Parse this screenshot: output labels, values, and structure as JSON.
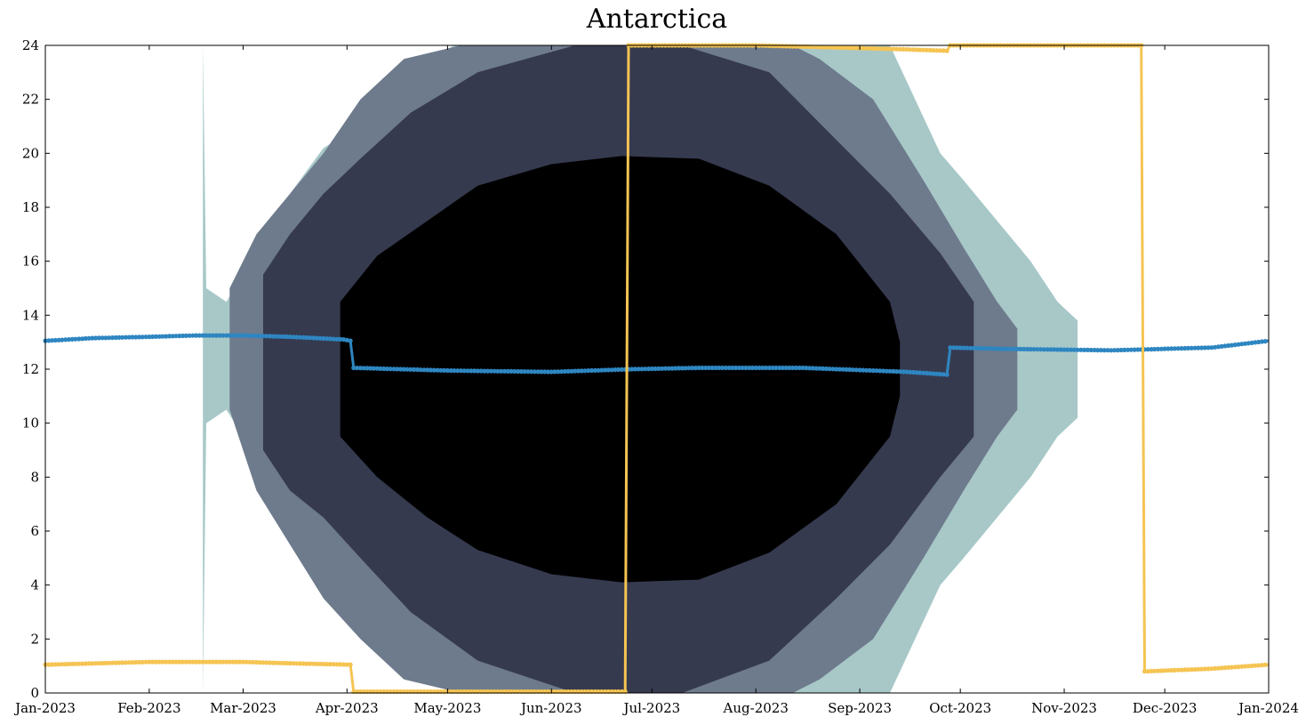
{
  "chart_data": {
    "type": "area",
    "title": "Antarctica",
    "xlabel": "",
    "ylabel": "",
    "x_axis": {
      "range": [
        "2023-01-01",
        "2024-01-01"
      ],
      "tick_labels": [
        "Jan-2023",
        "Feb-2023",
        "Mar-2023",
        "Apr-2023",
        "May-2023",
        "Jun-2023",
        "Jul-2023",
        "Aug-2023",
        "Sep-2023",
        "Oct-2023",
        "Nov-2023",
        "Dec-2023",
        "Jan-2024"
      ]
    },
    "y_axis": {
      "range": [
        0,
        24
      ],
      "tick_labels": [
        "0",
        "2",
        "4",
        "6",
        "8",
        "10",
        "12",
        "14",
        "16",
        "18",
        "20",
        "22",
        "24"
      ]
    },
    "grid": false,
    "legend": "none",
    "bands": [
      {
        "color": "#a8c8c8",
        "points": [
          [
            "2023-02-17",
            24,
            0
          ],
          [
            "2023-02-18",
            15,
            10
          ],
          [
            "2023-02-24",
            14.5,
            10.5
          ],
          [
            "2023-03-05",
            16.3,
            8.7
          ],
          [
            "2023-03-15",
            18.5,
            6.5
          ],
          [
            "2023-03-25",
            20.2,
            4.8
          ],
          [
            "2023-04-02",
            20.8,
            4.2
          ],
          [
            "2023-04-15",
            22.8,
            1.8
          ],
          [
            "2023-05-03",
            24,
            0
          ],
          [
            "2023-09-10",
            24,
            0
          ],
          [
            "2023-09-25",
            20,
            4
          ],
          [
            "2023-10-02",
            19,
            5
          ],
          [
            "2023-10-12",
            17.5,
            6.5
          ],
          [
            "2023-10-22",
            16,
            8
          ],
          [
            "2023-10-30",
            14.5,
            9.5
          ],
          [
            "2023-11-05",
            13.8,
            10.2
          ]
        ]
      },
      {
        "color": "#6e7b8d",
        "points": [
          [
            "2023-02-25",
            15,
            10.5
          ],
          [
            "2023-03-05",
            17,
            7.5
          ],
          [
            "2023-03-15",
            18.5,
            5.5
          ],
          [
            "2023-03-25",
            20,
            3.5
          ],
          [
            "2023-04-05",
            22,
            2
          ],
          [
            "2023-04-18",
            23.5,
            0.5
          ],
          [
            "2023-05-05",
            24,
            0
          ],
          [
            "2023-06-08",
            24,
            0
          ],
          [
            "2023-07-15",
            24,
            0
          ],
          [
            "2023-08-12",
            24,
            0
          ],
          [
            "2023-08-20",
            23.5,
            0.5
          ],
          [
            "2023-09-05",
            22,
            2
          ],
          [
            "2023-09-20",
            19,
            5
          ],
          [
            "2023-10-02",
            16.5,
            7.5
          ],
          [
            "2023-10-12",
            14.5,
            9.5
          ],
          [
            "2023-10-18",
            13.5,
            10.5
          ]
        ]
      },
      {
        "color": "#363a4f",
        "points": [
          [
            "2023-03-07",
            15.5,
            9
          ],
          [
            "2023-03-15",
            17,
            7.5
          ],
          [
            "2023-03-25",
            18.5,
            6.5
          ],
          [
            "2023-04-05",
            19.8,
            5
          ],
          [
            "2023-04-20",
            21.5,
            3
          ],
          [
            "2023-05-10",
            23,
            1.2
          ],
          [
            "2023-06-08",
            24,
            0
          ],
          [
            "2023-07-10",
            24,
            0
          ],
          [
            "2023-08-05",
            23,
            1.2
          ],
          [
            "2023-08-25",
            20.5,
            3.5
          ],
          [
            "2023-09-10",
            18.5,
            5.5
          ],
          [
            "2023-09-25",
            16.3,
            8
          ],
          [
            "2023-10-05",
            14.5,
            9.5
          ]
        ]
      },
      {
        "color": "#000000",
        "points": [
          [
            "2023-03-30",
            14.5,
            9.5
          ],
          [
            "2023-04-10",
            16.2,
            8
          ],
          [
            "2023-04-25",
            17.5,
            6.5
          ],
          [
            "2023-05-10",
            18.8,
            5.3
          ],
          [
            "2023-06-01",
            19.6,
            4.4
          ],
          [
            "2023-06-22",
            19.9,
            4.1
          ],
          [
            "2023-07-15",
            19.8,
            4.2
          ],
          [
            "2023-08-05",
            18.8,
            5.2
          ],
          [
            "2023-08-25",
            17,
            7
          ],
          [
            "2023-09-10",
            14.5,
            9.5
          ],
          [
            "2023-09-13",
            13,
            11
          ]
        ]
      }
    ],
    "series": [
      {
        "color": "#2e86c1",
        "points": [
          [
            "2023-01-01",
            13.05
          ],
          [
            "2023-01-15",
            13.15
          ],
          [
            "2023-02-01",
            13.2
          ],
          [
            "2023-02-15",
            13.25
          ],
          [
            "2023-03-01",
            13.25
          ],
          [
            "2023-03-15",
            13.2
          ],
          [
            "2023-03-31",
            13.1
          ],
          [
            "2023-04-02",
            13.05
          ],
          [
            "2023-04-03",
            12.05
          ],
          [
            "2023-05-01",
            11.95
          ],
          [
            "2023-06-01",
            11.9
          ],
          [
            "2023-06-25",
            12.0
          ],
          [
            "2023-07-15",
            12.05
          ],
          [
            "2023-08-15",
            12.05
          ],
          [
            "2023-09-15",
            11.9
          ],
          [
            "2023-09-27",
            11.8
          ],
          [
            "2023-09-28",
            12.8
          ],
          [
            "2023-10-15",
            12.75
          ],
          [
            "2023-11-15",
            12.7
          ],
          [
            "2023-12-15",
            12.8
          ],
          [
            "2024-01-01",
            13.05
          ]
        ]
      },
      {
        "color": "#f5c452",
        "points": [
          [
            "2023-01-01",
            1.05
          ],
          [
            "2023-02-01",
            1.15
          ],
          [
            "2023-03-01",
            1.15
          ],
          [
            "2023-03-15",
            1.1
          ],
          [
            "2023-04-02",
            1.05
          ],
          [
            "2023-04-03",
            0.05
          ],
          [
            "2023-06-23",
            0.05
          ],
          [
            "2023-06-24",
            24
          ],
          [
            "2023-08-01",
            24
          ],
          [
            "2023-09-15",
            23.85
          ],
          [
            "2023-09-27",
            23.8
          ],
          [
            "2023-09-28",
            24
          ],
          [
            "2023-11-24",
            24
          ],
          [
            "2023-11-25",
            0.8
          ],
          [
            "2023-12-15",
            0.9
          ],
          [
            "2024-01-01",
            1.05
          ]
        ]
      }
    ]
  }
}
